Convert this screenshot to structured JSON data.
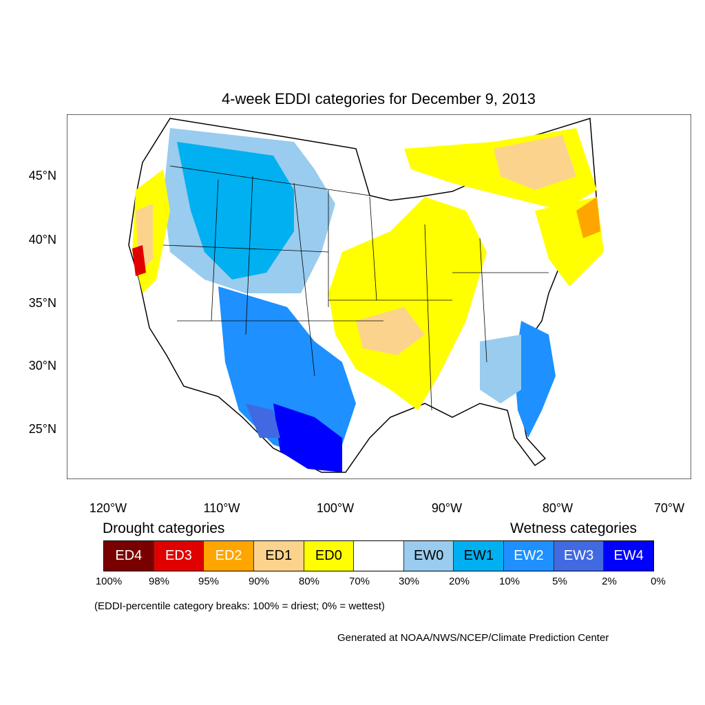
{
  "title": "4-week EDDI categories for December 9, 2013",
  "map": {
    "lat_ticks": [
      "45°N",
      "40°N",
      "35°N",
      "30°N",
      "25°N"
    ],
    "lon_ticks": [
      "120°W",
      "110°W",
      "100°W",
      "90°W",
      "80°W",
      "70°W"
    ],
    "colors": {
      "ED4": "#7a0000",
      "ED3": "#e00000",
      "ED2": "#ffa500",
      "ED1": "#fcd38c",
      "ED0": "#ffff00",
      "neutral": "#ffffff",
      "EW0": "#99ccee",
      "EW1": "#00b0f0",
      "EW2": "#1e90ff",
      "EW3": "#4169e1",
      "EW4": "#0000ff"
    }
  },
  "legend": {
    "drought_heading": "Drought categories",
    "wetness_heading": "Wetness categories",
    "swatches": [
      {
        "label": "ED4",
        "color": "#7a0000",
        "text_color": "#ffffff"
      },
      {
        "label": "ED3",
        "color": "#e00000",
        "text_color": "#ffffff"
      },
      {
        "label": "ED2",
        "color": "#ffa500",
        "text_color": "#ffffff"
      },
      {
        "label": "ED1",
        "color": "#fcd38c",
        "text_color": "#000000"
      },
      {
        "label": "ED0",
        "color": "#ffff00",
        "text_color": "#000000"
      },
      {
        "label": "",
        "color": "#ffffff",
        "text_color": "#000000"
      },
      {
        "label": "EW0",
        "color": "#99ccee",
        "text_color": "#000000"
      },
      {
        "label": "EW1",
        "color": "#00b0f0",
        "text_color": "#000000"
      },
      {
        "label": "EW2",
        "color": "#1e90ff",
        "text_color": "#ffffff"
      },
      {
        "label": "EW3",
        "color": "#4169e1",
        "text_color": "#ffffff"
      },
      {
        "label": "EW4",
        "color": "#0000ff",
        "text_color": "#ffffff"
      }
    ],
    "percent_breaks": [
      "100%",
      "98%",
      "95%",
      "90%",
      "80%",
      "70%",
      "30%",
      "20%",
      "10%",
      "5%",
      "2%",
      "0%"
    ]
  },
  "note": "(EDDI-percentile category breaks: 100% = driest; 0% = wettest)",
  "credit": "Generated at NOAA/NWS/NCEP/Climate Prediction Center"
}
